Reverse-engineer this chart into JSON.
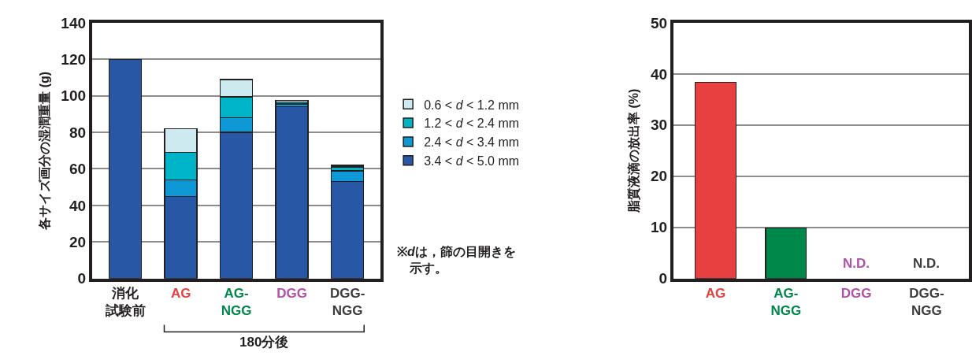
{
  "chart_data": [
    {
      "type": "bar",
      "stacked": true,
      "ylabel": "各サイズ画分の湿潤重量 (g)",
      "categories": [
        "消化試験前",
        "AG",
        "AG-NGG",
        "DGG",
        "DGG-NGG"
      ],
      "series": [
        {
          "name": "3.4 < d < 5.0 mm",
          "color": "#2757a5",
          "values": [
            120,
            45,
            80,
            94,
            53
          ]
        },
        {
          "name": "2.4 < d < 3.4 mm",
          "color": "#0e98d6",
          "values": [
            null,
            9,
            8,
            1.5,
            6
          ]
        },
        {
          "name": "1.2 < d < 2.4 mm",
          "color": "#00b4c8",
          "values": [
            null,
            15,
            11.5,
            1.2,
            2
          ]
        },
        {
          "name": "0.6 < d < 1.2 mm",
          "color": "#cdeaf0",
          "values": [
            null,
            13,
            9.5,
            0.7,
            1
          ]
        }
      ],
      "ylim": [
        0,
        140
      ],
      "yticks": [
        0,
        20,
        40,
        60,
        80,
        100,
        120,
        140
      ],
      "grid": "y",
      "legend": "right",
      "annotations": [
        "180分後",
        "※dは，篩の目開きを示す。"
      ]
    },
    {
      "type": "bar",
      "ylabel": "脂質液滴の放出率 (%)",
      "categories": [
        "AG",
        "AG-NGG",
        "DGG",
        "DGG-NGG"
      ],
      "values": [
        38.4,
        9.9,
        null,
        null
      ],
      "colors": [
        "#e84040",
        "#00874a",
        "#b050a8",
        "#3c3c3c"
      ],
      "ylim": [
        0,
        50
      ],
      "yticks": [
        0,
        10,
        20,
        30,
        40,
        50
      ],
      "grid": "y",
      "legend": false,
      "annotations": [
        "N.D.",
        "N.D."
      ]
    }
  ]
}
